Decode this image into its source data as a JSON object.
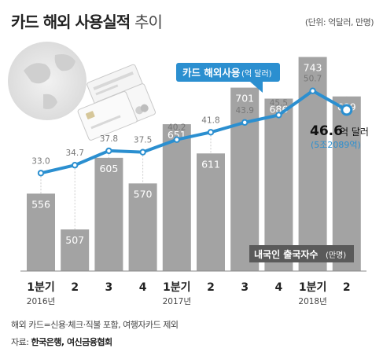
{
  "title": {
    "bold": "카드 해외 사용실적",
    "light": "추이"
  },
  "unit_note": "(단위: 억달러, 만명)",
  "chart_data": {
    "type": "bar+line",
    "categories": [
      "1분기",
      "2",
      "3",
      "4",
      "1분기",
      "2",
      "3",
      "4",
      "1분기",
      "2"
    ],
    "year_labels": [
      {
        "index": 0,
        "label": "2016년"
      },
      {
        "index": 4,
        "label": "2017년"
      },
      {
        "index": 8,
        "label": "2018년"
      }
    ],
    "series": [
      {
        "name": "카드 해외사용",
        "unit": "억달러",
        "type": "line",
        "color": "#2b8fd0",
        "values": [
          33.0,
          34.7,
          37.8,
          37.5,
          40.2,
          41.8,
          43.9,
          45.5,
          50.7,
          46.6
        ],
        "labels": [
          "33.0",
          "34.7",
          "37.8",
          "37.5",
          "40.2",
          "41.8",
          "43.9",
          "45.5",
          "50.7",
          ""
        ]
      },
      {
        "name": "내국인 출국자수",
        "unit": "만명",
        "type": "bar",
        "color": "#a3a3a3",
        "values": [
          556,
          507,
          605,
          570,
          651,
          611,
          701,
          686,
          743,
          689
        ]
      }
    ],
    "line_label": {
      "main": "카드 해외사용",
      "unit": "(억 달러)"
    },
    "bar_label": {
      "main": "내국인 출국자수",
      "unit": "(만명)"
    },
    "highlight": {
      "value": "46.6",
      "unit": "억 달러",
      "sub": "(5조2089억)"
    }
  },
  "footnote": "해외 카드=신용·체크·직불 포함, 여행자카드 제외",
  "source": {
    "prefix": "자료:",
    "text": "한국은행, 여신금융협회"
  }
}
